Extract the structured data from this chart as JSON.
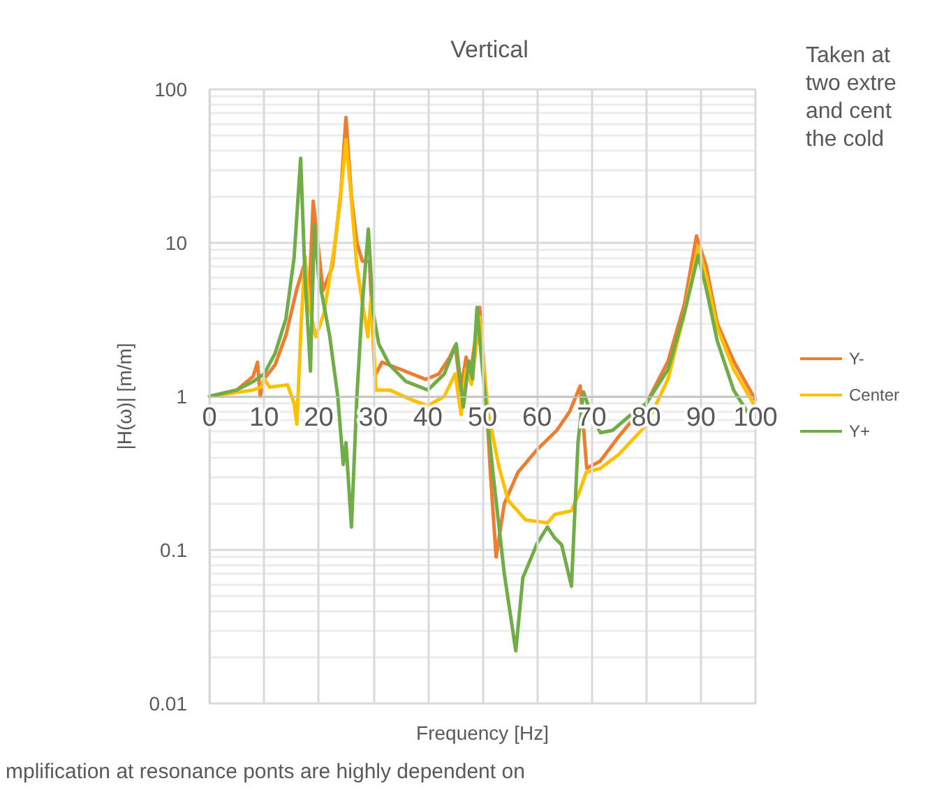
{
  "chart_data": {
    "type": "line",
    "title": "Vertical",
    "xlabel": "Frequency [Hz]",
    "ylabel": "|H(ω)| [m/m]",
    "xlim": [
      0,
      100
    ],
    "xticks": [
      0,
      10,
      20,
      30,
      40,
      50,
      60,
      70,
      80,
      90,
      100
    ],
    "ylim": [
      0.01,
      100
    ],
    "yticks": [
      0.01,
      0.1,
      1,
      10,
      100
    ],
    "log": "y",
    "grid": true,
    "legend": "right",
    "annotations": [
      "Taken at\ntwo extre\nand cent\nthe cold",
      "mplification at resonance ponts are highly dependent on"
    ],
    "series": [
      {
        "name": "Y-",
        "color": "#ed7d31",
        "x": [
          0,
          5,
          8,
          8.8,
          9.3,
          10,
          12,
          14,
          16,
          17.3,
          18.2,
          19,
          20.8,
          22.5,
          24,
          25,
          26,
          27,
          28,
          29.3,
          30.3,
          31.6,
          35,
          39.6,
          42,
          44,
          45,
          46,
          47,
          47.8,
          49.5,
          50.5,
          51.5,
          52.5,
          54,
          56.5,
          60,
          63.6,
          66,
          67.9,
          69.1,
          71.6,
          75,
          80,
          84,
          87,
          89.2,
          91,
          93,
          96,
          100
        ],
        "values": [
          1,
          1.1,
          1.35,
          1.67,
          1.0,
          1.3,
          1.6,
          2.5,
          5,
          7.1,
          4.1,
          18.7,
          4.9,
          7,
          20,
          65.7,
          20,
          10,
          7.6,
          7.6,
          1.36,
          1.67,
          1.5,
          1.29,
          1.4,
          1.8,
          2.14,
          1.1,
          1.8,
          1.4,
          3.8,
          1.2,
          0.3,
          0.09,
          0.2,
          0.32,
          0.45,
          0.6,
          0.8,
          1.17,
          0.34,
          0.38,
          0.55,
          0.9,
          1.7,
          4,
          11.1,
          7,
          3,
          1.7,
          0.95
        ]
      },
      {
        "name": "Center",
        "color": "#ffc000",
        "x": [
          0,
          8,
          9.5,
          10,
          11,
          14.3,
          15.5,
          16,
          16.8,
          17.5,
          18.3,
          19.5,
          21,
          23,
          24.5,
          25,
          25.7,
          27,
          29,
          29.6,
          30.5,
          33,
          37,
          40,
          43,
          45,
          46.1,
          47,
          48,
          49.5,
          51,
          53,
          54.7,
          57.9,
          61.9,
          63.2,
          66.3,
          67.6,
          69,
          71.6,
          75,
          80,
          84,
          87,
          89.5,
          91,
          93,
          96,
          100
        ],
        "values": [
          1,
          1.1,
          1.15,
          1.3,
          1.15,
          1.19,
          0.9,
          0.66,
          3,
          8.2,
          3.8,
          2.44,
          3.5,
          10,
          30,
          47,
          25,
          7,
          2.44,
          4.4,
          1.1,
          1.1,
          0.95,
          0.87,
          1.0,
          1.4,
          0.76,
          1.5,
          1.2,
          3.3,
          0.8,
          0.35,
          0.21,
          0.157,
          0.15,
          0.17,
          0.18,
          0.23,
          0.32,
          0.34,
          0.42,
          0.65,
          1.3,
          3.5,
          9.5,
          6,
          2.8,
          1.5,
          0.85
        ]
      },
      {
        "name": "Y+",
        "color": "#70ad47",
        "x": [
          0,
          5,
          8,
          10,
          12,
          14,
          15.5,
          16.7,
          17.5,
          18.5,
          19.2,
          20,
          22,
          23.5,
          24.5,
          25,
          26,
          27,
          28,
          29.1,
          30,
          31,
          33,
          36,
          40,
          43,
          45.2,
          46.5,
          47.5,
          48.2,
          49,
          50,
          52,
          54,
          56.1,
          57.4,
          60,
          61.9,
          63.2,
          64.5,
          66.3,
          67.5,
          68.5,
          70,
          71.6,
          73.8,
          77,
          80,
          84,
          87,
          89.5,
          91,
          93,
          96,
          100
        ],
        "values": [
          1,
          1.1,
          1.25,
          1.4,
          1.9,
          3.2,
          8,
          35.6,
          6,
          1.46,
          13.1,
          6,
          2.5,
          1.0,
          0.36,
          0.5,
          0.141,
          1.0,
          4,
          12.3,
          3.5,
          2.2,
          1.6,
          1.25,
          1.1,
          1.4,
          2.2,
          0.85,
          1.7,
          1.3,
          3.8,
          1.5,
          0.3,
          0.07,
          0.022,
          0.066,
          0.11,
          0.141,
          0.12,
          0.108,
          0.058,
          0.5,
          1.07,
          0.75,
          0.58,
          0.6,
          0.75,
          0.9,
          1.5,
          3.5,
          8.3,
          5,
          2.3,
          1.1,
          0.65
        ]
      }
    ]
  }
}
